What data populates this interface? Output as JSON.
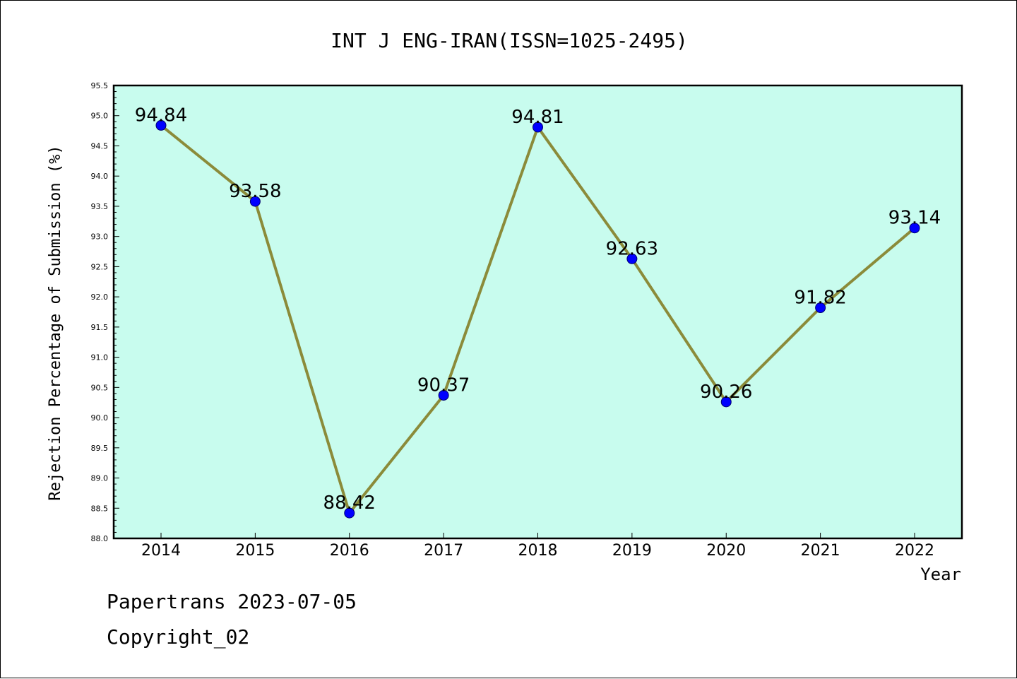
{
  "chart_data": {
    "type": "line",
    "title": "INT J ENG-IRAN(ISSN=1025-2495)",
    "xlabel": "Year",
    "ylabel": "Rejection Percentage of Submission (%)",
    "categories": [
      "2014",
      "2015",
      "2016",
      "2017",
      "2018",
      "2019",
      "2020",
      "2021",
      "2022"
    ],
    "values": [
      94.84,
      93.58,
      88.42,
      90.37,
      94.81,
      92.63,
      90.26,
      91.82,
      93.14
    ],
    "data_labels": [
      "94.84",
      "93.58",
      "88.42",
      "90.37",
      "94.81",
      "92.63",
      "90.26",
      "91.82",
      "93.14"
    ],
    "ylim": [
      88.0,
      95.5
    ],
    "yticks": [
      "88.0",
      "88.5",
      "89.0",
      "89.5",
      "90.0",
      "90.5",
      "91.0",
      "91.5",
      "92.0",
      "92.5",
      "93.0",
      "93.5",
      "94.0",
      "94.5",
      "95.0",
      "95.5"
    ],
    "grid": false,
    "legend": "none",
    "colors": {
      "plot_background": "#c8fcee",
      "line": "#8b8b3a",
      "marker": "#0000ff",
      "marker_edge": "#00006e"
    }
  },
  "footer": {
    "date_line": "Papertrans 2023-07-05",
    "copyright_line": "Copyright_02"
  }
}
